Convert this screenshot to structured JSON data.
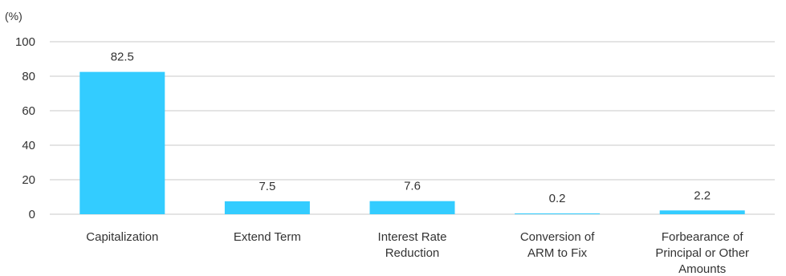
{
  "chart_data": {
    "type": "bar",
    "unit_label": "(%)",
    "categories": [
      [
        "Capitalization"
      ],
      [
        "Extend Term"
      ],
      [
        "Interest Rate",
        "Reduction"
      ],
      [
        "Conversion of",
        "ARM to Fix"
      ],
      [
        "Forbearance of",
        "Principal or Other",
        "Amounts"
      ]
    ],
    "values": [
      82.5,
      7.5,
      7.6,
      0.2,
      2.2
    ],
    "data_labels": [
      "82.5",
      "7.5",
      "7.6",
      "0.2",
      "2.2"
    ],
    "yticks": [
      "0",
      "20",
      "40",
      "60",
      "80",
      "100"
    ],
    "ylim": [
      0,
      100
    ],
    "grid": true,
    "bar_color": "#33ccff",
    "grid_color": "#c8c8c8"
  }
}
